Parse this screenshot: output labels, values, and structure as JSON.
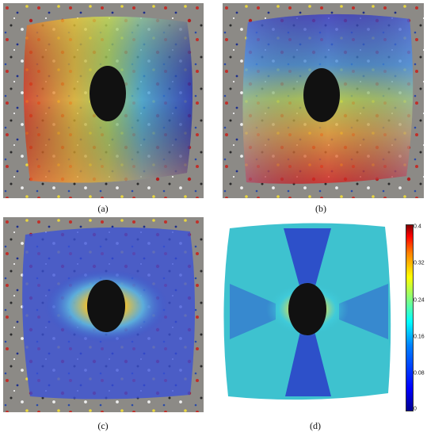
{
  "panels": [
    {
      "caption": "(a)",
      "pattern": "horizontal-high"
    },
    {
      "caption": "(b)",
      "pattern": "vertical-high"
    },
    {
      "caption": "(c)",
      "pattern": "hole-concentration"
    },
    {
      "caption": "(d)",
      "pattern": "x-shaped"
    }
  ],
  "colorbar": {
    "ticks": [
      "0.4",
      "0.32",
      "0.24",
      "0.16",
      "0.08",
      "0"
    ],
    "colors": {
      "min": "#00008f",
      "low": "#0080ff",
      "mid": "#00ffff",
      "high": "#ffff00",
      "max": "#800000"
    }
  },
  "colors": {
    "background": "#ffffff",
    "hole": "#111111",
    "speckle_base": "#8c8a86"
  }
}
